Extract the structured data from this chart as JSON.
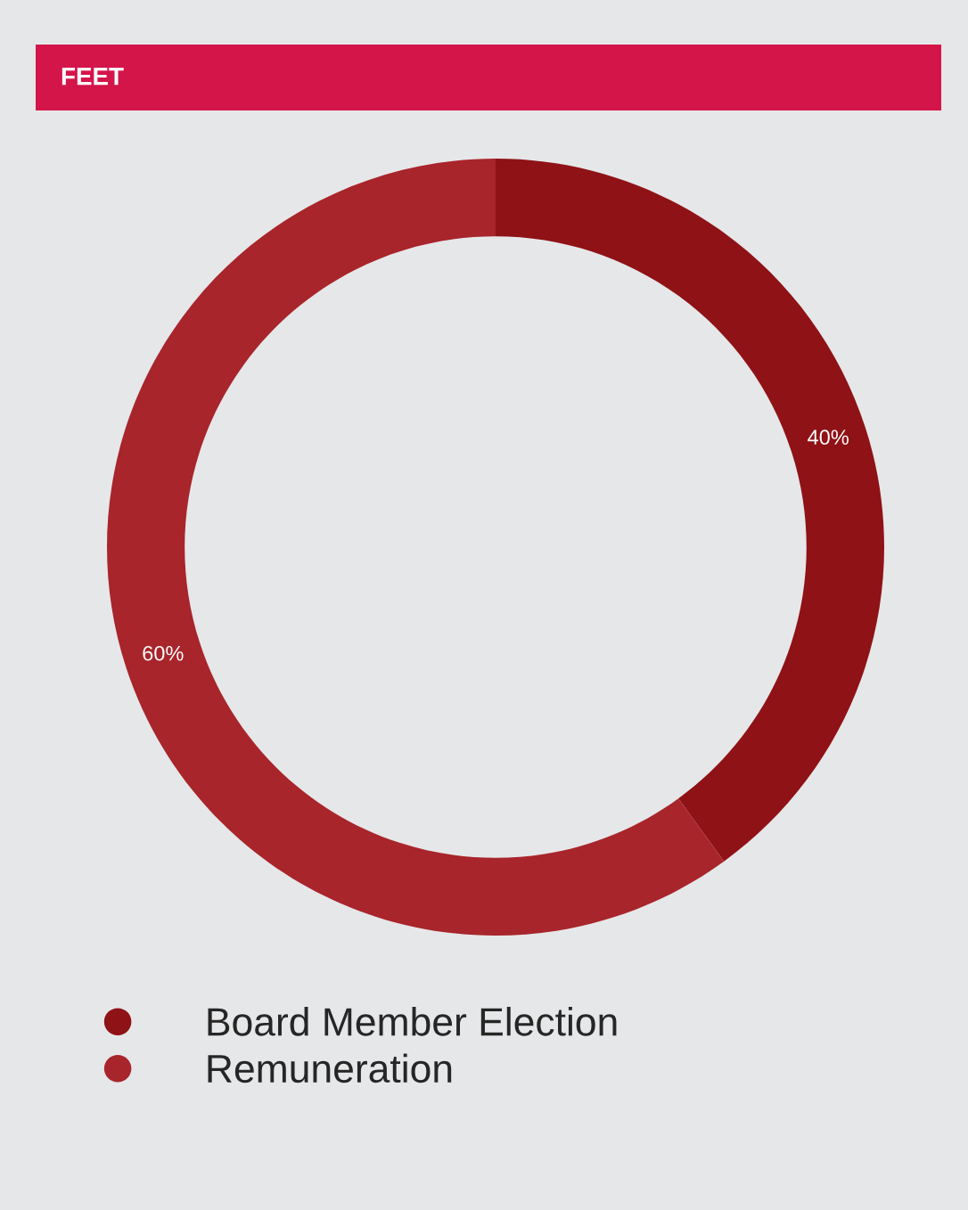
{
  "chart_data": {
    "type": "donut",
    "title": "FEET",
    "categories": [
      "Board Member Election",
      "Remuneration"
    ],
    "values": [
      40,
      60
    ],
    "colors": [
      "#8f1216",
      "#a8252b"
    ],
    "value_labels": [
      "40%",
      "60%"
    ],
    "legend": "bottom"
  }
}
